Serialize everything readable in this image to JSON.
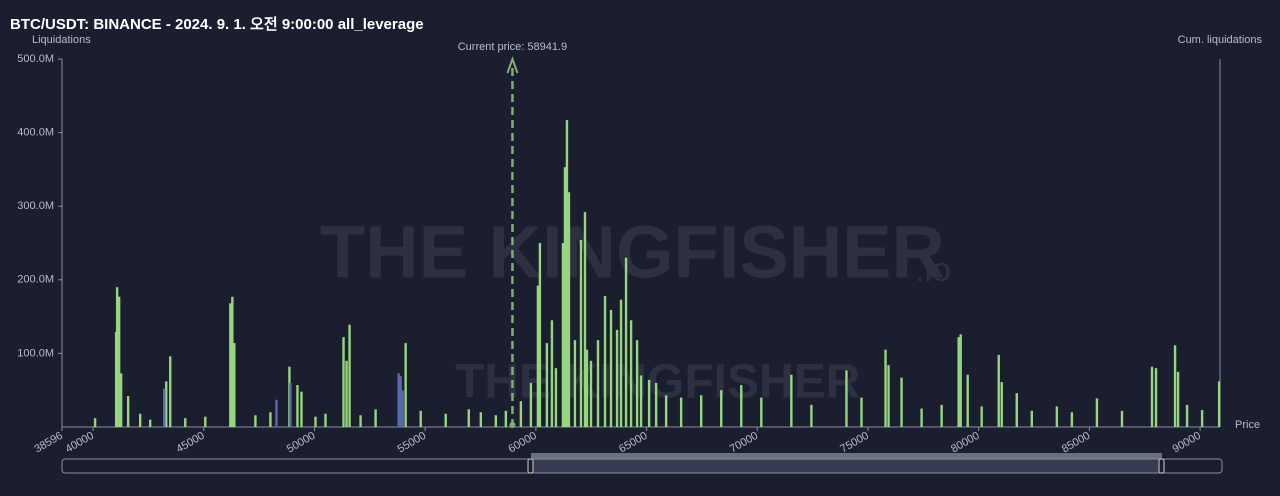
{
  "chart_data": {
    "type": "bar",
    "title": "BTC/USDT: BINANCE - 2024. 9. 1. 오전 9:00:00 all_leverage",
    "y_label": "Liquidations",
    "y2_label": "Cum. liquidations",
    "x_label": "Price",
    "watermark": "THE KINGFISHER",
    "watermark_suffix": ".io",
    "current_price": {
      "value": 58941.9,
      "label": "Current price: 58941.9"
    },
    "xlim": [
      38596,
      90900
    ],
    "xticks": [
      38596,
      40000,
      45000,
      50000,
      55000,
      60000,
      65000,
      70000,
      75000,
      80000,
      85000,
      90000
    ],
    "ylim": [
      0,
      500
    ],
    "yticks": [
      {
        "value": 100,
        "label": "100.0M"
      },
      {
        "value": 200,
        "label": "200.0M"
      },
      {
        "value": 300,
        "label": "300.0M"
      },
      {
        "value": 400,
        "label": "400.0M"
      },
      {
        "value": 500,
        "label": "500.0M"
      }
    ],
    "grid": false,
    "series": [
      {
        "color": "#96d67f",
        "x": [
          40090,
          41041,
          41086,
          41177,
          41267,
          41584,
          42127,
          42579,
          43303,
          43484,
          44163,
          45068,
          46199,
          46290,
          46380,
          47331,
          48010,
          48869,
          49231,
          49412,
          50046,
          50498,
          51312,
          51448,
          51584,
          52082,
          52761,
          54118,
          54797,
          55928,
          56969,
          57512,
          58191,
          58644,
          59322,
          59775,
          60091,
          60182,
          60498,
          60725,
          60906,
          61222,
          61313,
          61403,
          61494,
          61765,
          62037,
          62218,
          62308,
          62489,
          62806,
          63123,
          63394,
          63666,
          63847,
          64073,
          64300,
          64571,
          64752,
          65114,
          65431,
          65883,
          66562,
          67467,
          68372,
          69277,
          70182,
          71539,
          72445,
          74028,
          74707,
          75793,
          75929,
          76517,
          77422,
          78327,
          79096,
          79187,
          79504,
          80136,
          80906,
          81042,
          81721,
          82400,
          83531,
          84210,
          85341,
          86473,
          87829,
          88010,
          88870,
          89006,
          89413,
          90092,
          90861
        ],
        "values": [
          12,
          129,
          190,
          177,
          73,
          42,
          18,
          10,
          62,
          96,
          12,
          14,
          168,
          177,
          114,
          16,
          20,
          82,
          57,
          48,
          14,
          18,
          122,
          90,
          139,
          16,
          24,
          114,
          22,
          18,
          24,
          20,
          16,
          22,
          35,
          60,
          192,
          250,
          114,
          145,
          80,
          250,
          353,
          417,
          319,
          118,
          254,
          292,
          105,
          90,
          118,
          178,
          159,
          132,
          173,
          230,
          145,
          118,
          70,
          64,
          60,
          43,
          40,
          43,
          50,
          57,
          40,
          71,
          30,
          77,
          40,
          105,
          84,
          67,
          25,
          30,
          122,
          126,
          71,
          28,
          98,
          61,
          46,
          22,
          28,
          20,
          39,
          22,
          82,
          80,
          111,
          75,
          30,
          23,
          62
        ]
      },
      {
        "color": "#5a68b0",
        "x": [
          43213,
          48281,
          48914,
          53801,
          53892,
          53982
        ],
        "values": [
          52,
          37,
          60,
          73,
          69,
          50
        ]
      }
    ]
  }
}
